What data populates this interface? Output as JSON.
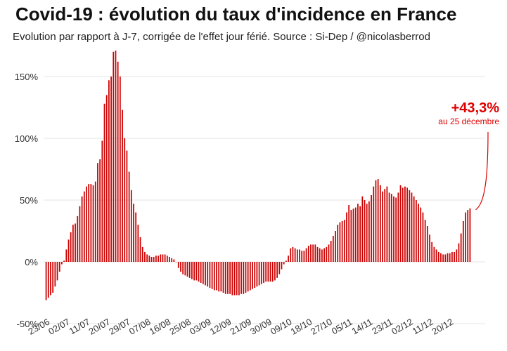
{
  "title": "Covid-19 : évolution du taux d'incidence en France",
  "subtitle": "Evolution par rapport à J-7, corrigée de l'effet jour férié. Source : Si-Dep  / @nicolasberrod",
  "colors": {
    "bar": "#cc0000",
    "annotation": "#dd0000",
    "grid": "#e6e6e6"
  },
  "chart_data": {
    "type": "bar",
    "title": "Covid-19 : évolution du taux d'incidence en France",
    "xlabel": "",
    "ylabel": "",
    "ylim": [
      -50,
      175
    ],
    "y_ticks": [
      {
        "value": -50,
        "label": "-50%"
      },
      {
        "value": 0,
        "label": "0%"
      },
      {
        "value": 50,
        "label": "50%"
      },
      {
        "value": 100,
        "label": "100%"
      },
      {
        "value": 150,
        "label": "150%"
      }
    ],
    "x_ticks": [
      {
        "index": 0,
        "label": "23/06"
      },
      {
        "index": 9,
        "label": "02/07"
      },
      {
        "index": 18,
        "label": "11/07"
      },
      {
        "index": 27,
        "label": "20/07"
      },
      {
        "index": 36,
        "label": "29/07"
      },
      {
        "index": 45,
        "label": "07/08"
      },
      {
        "index": 54,
        "label": "16/08"
      },
      {
        "index": 63,
        "label": "25/08"
      },
      {
        "index": 72,
        "label": "03/09"
      },
      {
        "index": 81,
        "label": "12/09"
      },
      {
        "index": 90,
        "label": "21/09"
      },
      {
        "index": 99,
        "label": "30/09"
      },
      {
        "index": 108,
        "label": "09/10"
      },
      {
        "index": 117,
        "label": "18/10"
      },
      {
        "index": 126,
        "label": "27/10"
      },
      {
        "index": 135,
        "label": "05/11"
      },
      {
        "index": 144,
        "label": "14/11"
      },
      {
        "index": 153,
        "label": "23/11"
      },
      {
        "index": 162,
        "label": "02/12"
      },
      {
        "index": 171,
        "label": "11/12"
      },
      {
        "index": 180,
        "label": "20/12"
      }
    ],
    "grid": true,
    "values": [
      -31,
      -29,
      -27,
      -25,
      -20,
      -15,
      -8,
      -2,
      1,
      10,
      18,
      24,
      30,
      31,
      37,
      45,
      53,
      57,
      61,
      63,
      63,
      62,
      65,
      80,
      83,
      98,
      128,
      135,
      147,
      150,
      170,
      171,
      162,
      150,
      123,
      100,
      90,
      73,
      58,
      47,
      40,
      30,
      20,
      12,
      8,
      6,
      5,
      4,
      4,
      5,
      5,
      6,
      6,
      6,
      5,
      4,
      3,
      2,
      0,
      -5,
      -8,
      -10,
      -11,
      -12,
      -13,
      -14,
      -15,
      -15,
      -16,
      -17,
      -18,
      -19,
      -20,
      -21,
      -22,
      -23,
      -23,
      -24,
      -24,
      -25,
      -26,
      -26,
      -26,
      -27,
      -27,
      -27,
      -27,
      -26,
      -26,
      -25,
      -24,
      -23,
      -22,
      -21,
      -20,
      -19,
      -18,
      -17,
      -16,
      -16,
      -16,
      -16,
      -15,
      -13,
      -10,
      -6,
      -2,
      1,
      5,
      11,
      12,
      11,
      10,
      10,
      9,
      9,
      11,
      13,
      14,
      14,
      14,
      12,
      11,
      10,
      11,
      12,
      14,
      17,
      21,
      25,
      30,
      32,
      33,
      34,
      40,
      46,
      42,
      43,
      44,
      47,
      45,
      53,
      50,
      47,
      49,
      54,
      61,
      66,
      67,
      62,
      57,
      59,
      61,
      56,
      55,
      53,
      52,
      56,
      62,
      60,
      61,
      60,
      58,
      56,
      53,
      50,
      47,
      44,
      40,
      34,
      29,
      22,
      16,
      12,
      10,
      8,
      7,
      6,
      6,
      7,
      7,
      8,
      8,
      10,
      15,
      23,
      33,
      40,
      42,
      43.3
    ],
    "annotation": {
      "value_label": "+43,3%",
      "date_label": "au 25 décembre"
    }
  }
}
